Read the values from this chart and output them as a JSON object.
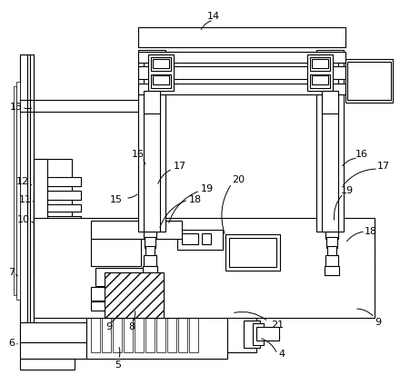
{
  "bg_color": "#ffffff",
  "lc": "#000000",
  "lw": 0.8,
  "tlw": 0.5,
  "fig_width": 4.4,
  "fig_height": 4.24,
  "dpi": 100
}
